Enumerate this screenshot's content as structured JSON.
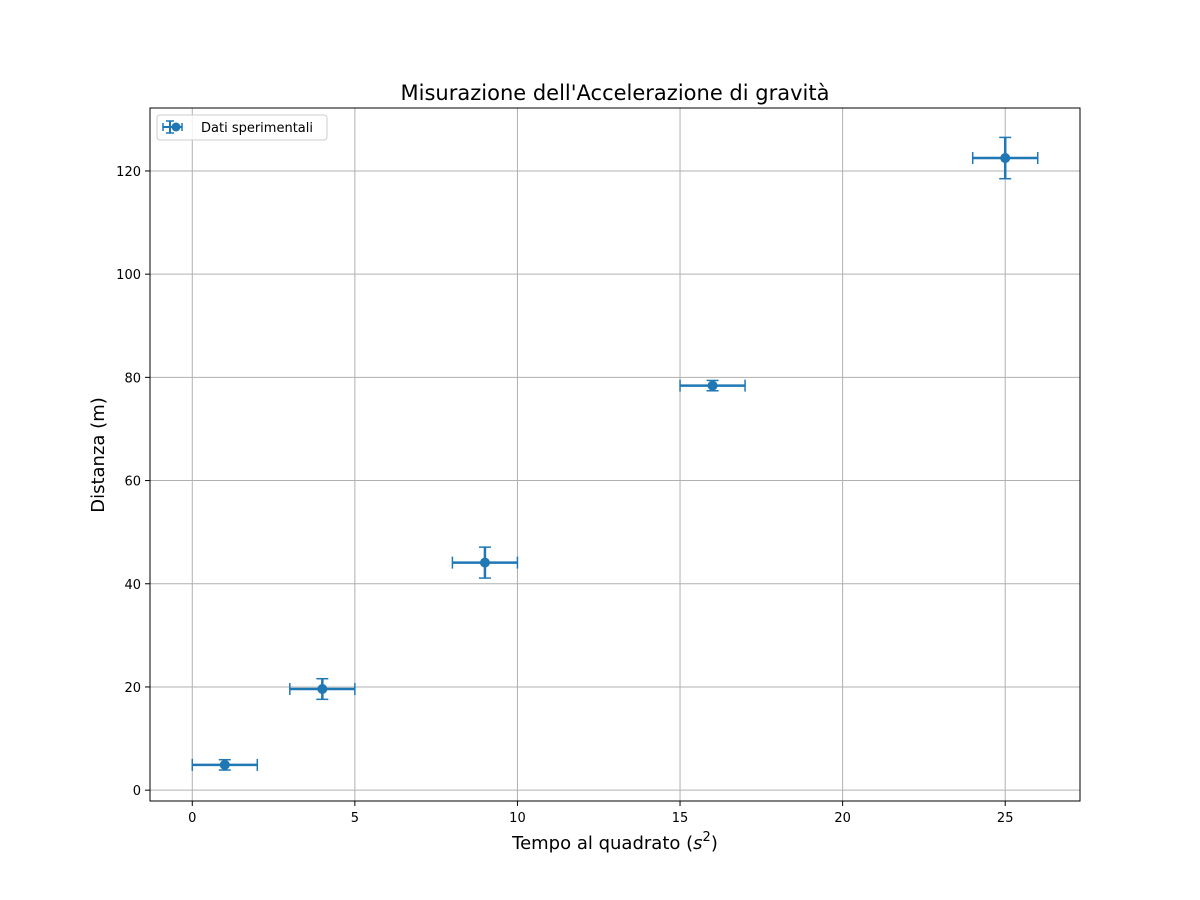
{
  "chart_data": {
    "type": "scatter",
    "title": "Misurazione dell'Accelerazione di gravità",
    "xlabel": "Tempo al quadrato ",
    "xlabel_unit_base": "s",
    "xlabel_unit_exp": "2",
    "ylabel": "Distanza (m)",
    "xlim": [
      -1.3,
      27.3
    ],
    "ylim": [
      -2.1,
      132.2
    ],
    "x_ticks": [
      0,
      5,
      10,
      15,
      20,
      25
    ],
    "y_ticks": [
      0,
      20,
      40,
      60,
      80,
      100,
      120
    ],
    "grid": true,
    "legend_position": "upper-left",
    "series": [
      {
        "name": "Dati sperimentali",
        "color": "#1f77b4",
        "points": [
          {
            "x": 1,
            "y": 4.9,
            "xerr": 1,
            "yerr": 1.0
          },
          {
            "x": 4,
            "y": 19.6,
            "xerr": 1,
            "yerr": 2.0
          },
          {
            "x": 9,
            "y": 44.1,
            "xerr": 1,
            "yerr": 3.0
          },
          {
            "x": 16,
            "y": 78.4,
            "xerr": 1,
            "yerr": 1.0
          },
          {
            "x": 25,
            "y": 122.5,
            "xerr": 1,
            "yerr": 4.0
          }
        ]
      }
    ]
  }
}
